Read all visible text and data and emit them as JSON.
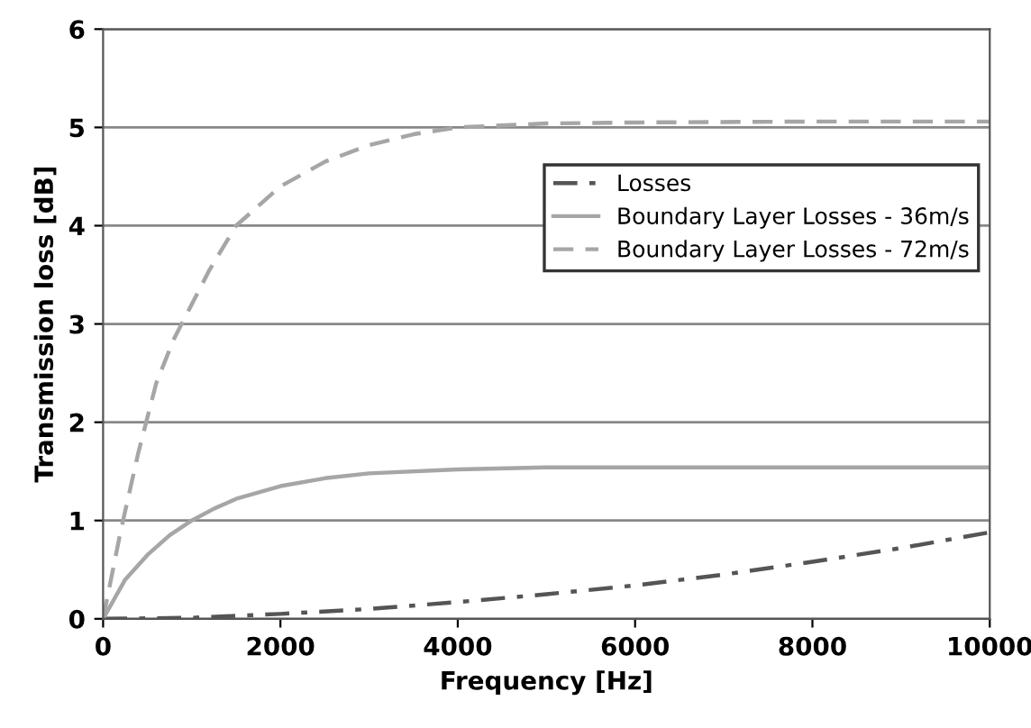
{
  "chart_data": {
    "type": "line",
    "xlabel": "Frequency [Hz]",
    "ylabel": "Transmission loss [dB]",
    "xlim": [
      0,
      10000
    ],
    "xticks": [
      0,
      2000,
      4000,
      6000,
      8000,
      10000
    ],
    "ylim": [
      0,
      6
    ],
    "yticks": [
      0,
      1,
      2,
      3,
      4,
      5,
      6
    ],
    "grid": "y",
    "legend": "right",
    "marker": "none",
    "series": [
      {
        "name": "Losses",
        "color": "#555555",
        "line_style": "dashdot",
        "x": [
          0,
          1000,
          2000,
          3000,
          4000,
          5000,
          6000,
          7000,
          8000,
          9000,
          10000
        ],
        "values": [
          0,
          0.01,
          0.05,
          0.1,
          0.17,
          0.25,
          0.34,
          0.45,
          0.58,
          0.72,
          0.88
        ]
      },
      {
        "name": "Boundary Layer Losses - 36m/s",
        "color": "#a6a6a6",
        "line_style": "solid",
        "x": [
          0,
          250,
          500,
          750,
          1000,
          1250,
          1500,
          2000,
          2500,
          3000,
          4000,
          5000,
          6000,
          10000
        ],
        "values": [
          0,
          0.4,
          0.65,
          0.85,
          1.0,
          1.12,
          1.22,
          1.35,
          1.43,
          1.48,
          1.52,
          1.54,
          1.54,
          1.54
        ]
      },
      {
        "name": "Boundary Layer Losses - 72m/s",
        "color": "#a6a6a6",
        "line_style": "dashed",
        "x": [
          0,
          200,
          400,
          600,
          800,
          1000,
          1200,
          1500,
          2000,
          2500,
          3000,
          3500,
          4000,
          5000,
          6000,
          8000,
          10000
        ],
        "values": [
          0,
          0.9,
          1.7,
          2.4,
          2.85,
          3.2,
          3.55,
          4.0,
          4.4,
          4.65,
          4.82,
          4.93,
          5.0,
          5.04,
          5.05,
          5.06,
          5.06
        ]
      }
    ]
  }
}
